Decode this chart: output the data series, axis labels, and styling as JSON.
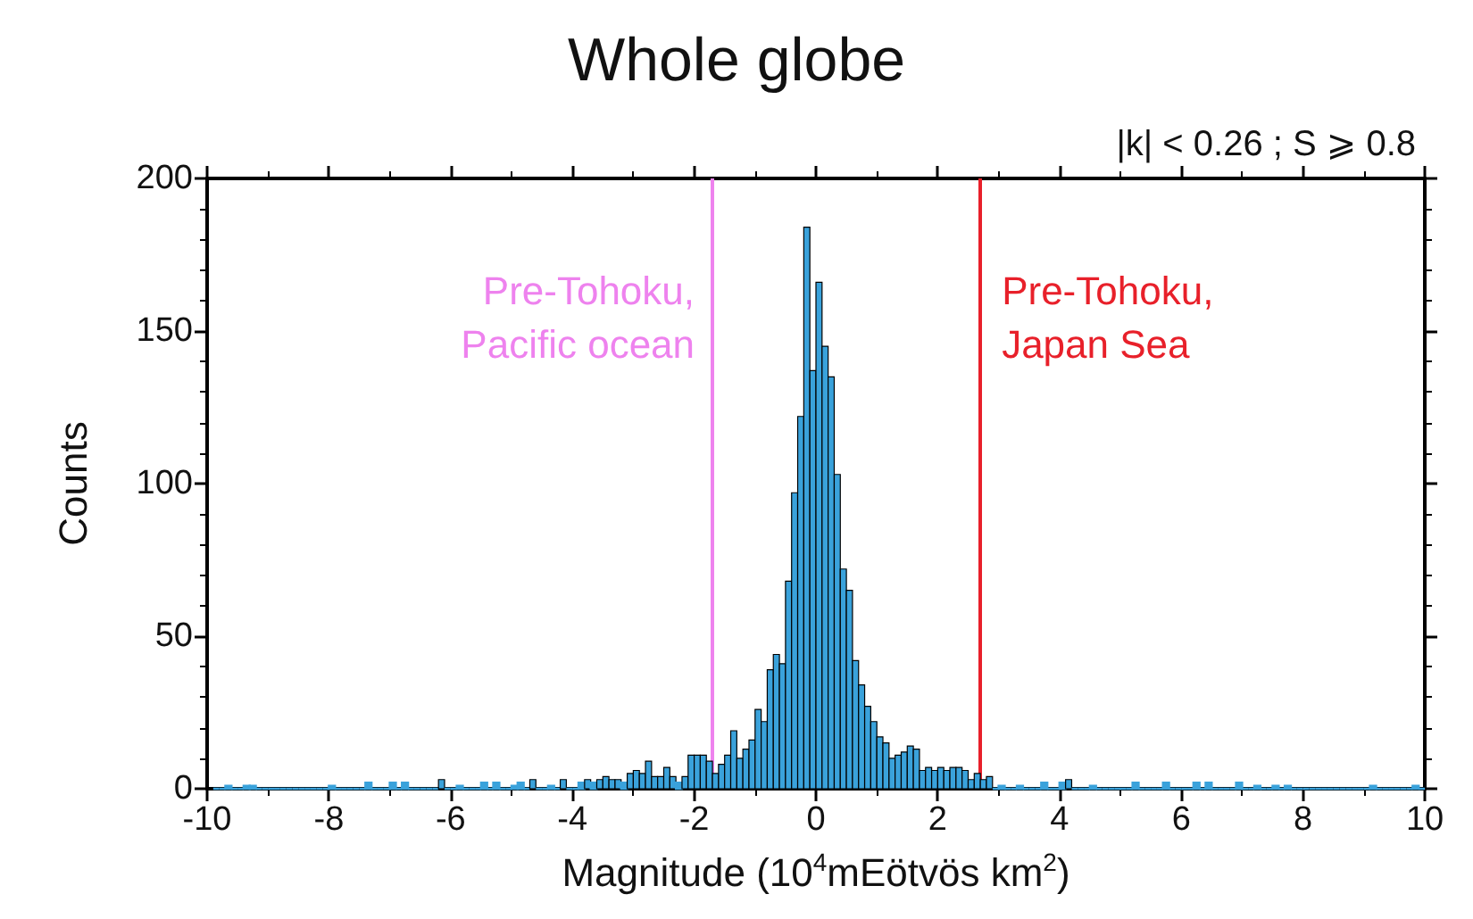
{
  "chart_data": {
    "type": "histogram",
    "title": "Whole globe",
    "subtitle": "|k| < 0.26 ; S ⩾ 0.8",
    "xlabel": "Magnitude (10$^{4}$mEötvös km$^{2}$)",
    "ylabel": "Counts",
    "bins": [
      -9.9,
      -9.8,
      -9.7,
      -9.6,
      -9.5,
      -9.4,
      -9.3,
      -9.2,
      -9.1,
      -9,
      -8.9,
      -8.8,
      -8.7,
      -8.6,
      -8.5,
      -8.4,
      -8.3,
      -8.2,
      -8.1,
      -8,
      -7.9,
      -7.8,
      -7.7,
      -7.6,
      -7.5,
      -7.4,
      -7.3,
      -7.2,
      -7.1,
      -7,
      -6.9,
      -6.8,
      -6.7,
      -6.6,
      -6.5,
      -6.4,
      -6.3,
      -6.2,
      -6.1,
      -6,
      -5.9,
      -5.8,
      -5.7,
      -5.6,
      -5.5,
      -5.4,
      -5.3,
      -5.2,
      -5.1,
      -5,
      -4.9,
      -4.8,
      -4.7,
      -4.6,
      -4.5,
      -4.4,
      -4.3,
      -4.2,
      -4.1,
      -4,
      -3.9,
      -3.8,
      -3.7,
      -3.6,
      -3.5,
      -3.4,
      -3.3,
      -3.2,
      -3.1,
      -3,
      -2.9,
      -2.8,
      -2.7,
      -2.6,
      -2.5,
      -2.4,
      -2.3,
      -2.2,
      -2.1,
      -2,
      -1.9,
      -1.8,
      -1.7,
      -1.6,
      -1.5,
      -1.4,
      -1.3,
      -1.2,
      -1.1,
      -1,
      -0.9,
      -0.8,
      -0.7,
      -0.6,
      -0.5,
      -0.4,
      -0.3,
      -0.2,
      -0.1,
      0,
      0.1,
      0.2,
      0.3,
      0.4,
      0.5,
      0.6,
      0.7,
      0.8,
      0.9,
      1,
      1.1,
      1.2,
      1.3,
      1.4,
      1.5,
      1.6,
      1.7,
      1.8,
      1.9,
      2,
      2.1,
      2.2,
      2.3,
      2.4,
      2.5,
      2.6,
      2.7,
      2.8,
      2.9,
      3,
      3.1,
      3.2,
      3.3,
      3.4,
      3.5,
      3.6,
      3.7,
      3.8,
      3.9,
      4,
      4.1,
      4.2,
      4.3,
      4.4,
      4.5,
      4.6,
      4.7,
      4.8,
      4.9,
      5,
      5.1,
      5.2,
      5.3,
      5.4,
      5.5,
      5.6,
      5.7,
      5.8,
      5.9,
      6,
      6.1,
      6.2,
      6.3,
      6.4,
      6.5,
      6.6,
      6.7,
      6.8,
      6.9,
      7,
      7.1,
      7.2,
      7.3,
      7.4,
      7.5,
      7.6,
      7.7,
      7.8,
      7.9,
      8,
      8.1,
      8.2,
      8.3,
      8.4,
      8.5,
      8.6,
      8.7,
      8.8,
      8.9,
      9,
      9.1,
      9.2,
      9.3,
      9.4,
      9.5,
      9.6,
      9.7,
      9.8,
      9.9,
      10
    ],
    "values": [
      0,
      0,
      1,
      0,
      0,
      1,
      1,
      0,
      0,
      0,
      0,
      0,
      0,
      0,
      0,
      0,
      0,
      0,
      0,
      1,
      0,
      0,
      0,
      0,
      0,
      2,
      0,
      0,
      0,
      2,
      0,
      2,
      0,
      0,
      0,
      0,
      0,
      3,
      0,
      0,
      1,
      0,
      0,
      0,
      2,
      0,
      2,
      0,
      0,
      1,
      2,
      0,
      3,
      0,
      0,
      1,
      0,
      3,
      0,
      0,
      2,
      3,
      2,
      3,
      4,
      3,
      3,
      2,
      5,
      6,
      5,
      9,
      4,
      4,
      7,
      4,
      2,
      4,
      11,
      11,
      11,
      9,
      5,
      8,
      11,
      19,
      10,
      13,
      16,
      26,
      22,
      39,
      44,
      41,
      68,
      97,
      122,
      184,
      137,
      166,
      145,
      135,
      103,
      72,
      65,
      42,
      34,
      27,
      22,
      17,
      15,
      10,
      11,
      12,
      14,
      13,
      6,
      7,
      6,
      7,
      6,
      7,
      7,
      6,
      3,
      5,
      3,
      4,
      0,
      1,
      0,
      0,
      1,
      0,
      0,
      0,
      2,
      0,
      0,
      2,
      3,
      0,
      0,
      0,
      1,
      0,
      0,
      0,
      0,
      0,
      0,
      2,
      0,
      0,
      0,
      0,
      2,
      0,
      0,
      0,
      0,
      2,
      0,
      2,
      0,
      0,
      0,
      0,
      2,
      0,
      0,
      1,
      0,
      0,
      1,
      0,
      1,
      0,
      0,
      0,
      0,
      0,
      0,
      0,
      0,
      0,
      0,
      0,
      0,
      0,
      1,
      0,
      0,
      0,
      0,
      0,
      0,
      1,
      0
    ],
    "color": "#3aa2db",
    "xlim": [
      -10,
      10
    ],
    "xticks": [
      -10,
      -8,
      -6,
      -4,
      -2,
      0,
      2,
      4,
      6,
      8,
      10
    ],
    "ylim": [
      0,
      200
    ],
    "yticks": [
      0,
      50,
      100,
      150,
      200
    ],
    "ref_lines": [
      {
        "axis": "x",
        "value": -1.7,
        "label": "Pre-Tohoku,\nPacific ocean",
        "color": "#ee82ee"
      },
      {
        "axis": "x",
        "value": 2.7,
        "label": "Pre-Tohoku,\nJapan Sea",
        "color": "#e8202a"
      }
    ],
    "grid": false
  }
}
